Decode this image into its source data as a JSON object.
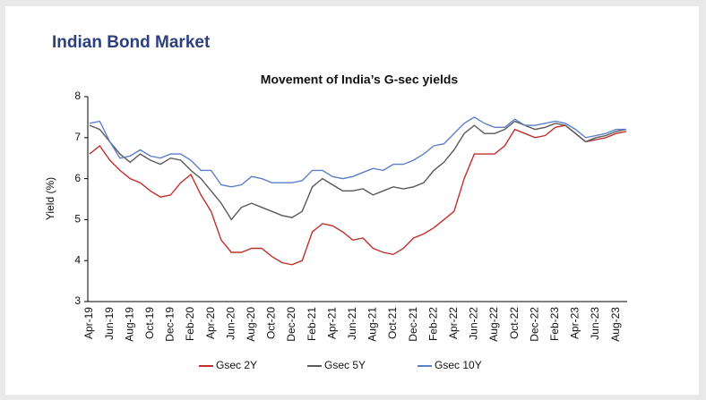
{
  "header": {
    "title": "Indian Bond Market"
  },
  "chart_data": {
    "type": "line",
    "title": "Movement of India’s G-sec yields",
    "y_label": "Yield (%)",
    "categories": [
      "Apr-19",
      null,
      "Jun-19",
      null,
      "Aug-19",
      null,
      "Oct-19",
      null,
      "Dec-19",
      null,
      "Feb-20",
      null,
      "Apr-20",
      null,
      "Jun-20",
      null,
      "Aug-20",
      null,
      "Oct-20",
      null,
      "Dec-20",
      null,
      "Feb-21",
      null,
      "Apr-21",
      null,
      "Jun-21",
      null,
      "Aug-21",
      null,
      "Oct-21",
      null,
      "Dec-21",
      null,
      "Feb-22",
      null,
      "Apr-22",
      null,
      "Jun-22",
      null,
      "Aug-22",
      null,
      "Oct-22",
      null,
      "Dec-22",
      null,
      "Feb-23",
      null,
      "Apr-23",
      null,
      "Jun-23",
      null,
      "Aug-23",
      null
    ],
    "series": [
      {
        "name": "Gsec 2Y",
        "color": "#c0302a",
        "values": [
          6.6,
          6.8,
          6.45,
          6.2,
          6.0,
          5.9,
          5.7,
          5.55,
          5.6,
          5.9,
          6.1,
          5.6,
          5.2,
          4.5,
          4.2,
          4.2,
          4.3,
          4.3,
          4.1,
          3.95,
          3.9,
          4.0,
          4.7,
          4.9,
          4.85,
          4.7,
          4.5,
          4.55,
          4.3,
          4.2,
          4.15,
          4.3,
          4.55,
          4.65,
          4.8,
          5.0,
          5.2,
          6.0,
          6.6,
          6.6,
          6.6,
          6.8,
          7.2,
          7.1,
          7.0,
          7.05,
          7.25,
          7.3,
          7.1,
          6.9,
          6.95,
          7.0,
          7.1,
          7.15
        ]
      },
      {
        "name": "Gsec 5Y",
        "color": "#595959",
        "values": [
          7.3,
          7.2,
          6.9,
          6.6,
          6.4,
          6.6,
          6.45,
          6.35,
          6.5,
          6.45,
          6.2,
          6.0,
          5.7,
          5.4,
          5.0,
          5.3,
          5.4,
          5.3,
          5.2,
          5.1,
          5.05,
          5.2,
          5.8,
          6.0,
          5.85,
          5.7,
          5.7,
          5.75,
          5.6,
          5.7,
          5.8,
          5.75,
          5.8,
          5.9,
          6.2,
          6.4,
          6.7,
          7.1,
          7.3,
          7.1,
          7.1,
          7.2,
          7.4,
          7.3,
          7.2,
          7.25,
          7.35,
          7.3,
          7.1,
          6.9,
          7.0,
          7.05,
          7.15,
          7.2
        ]
      },
      {
        "name": "Gsec 10Y",
        "color": "#5b7fc9",
        "values": [
          7.35,
          7.4,
          6.9,
          6.5,
          6.55,
          6.7,
          6.55,
          6.5,
          6.6,
          6.6,
          6.45,
          6.2,
          6.2,
          5.85,
          5.8,
          5.85,
          6.05,
          6.0,
          5.9,
          5.9,
          5.9,
          5.95,
          6.2,
          6.2,
          6.05,
          6.0,
          6.05,
          6.15,
          6.25,
          6.2,
          6.35,
          6.35,
          6.45,
          6.6,
          6.8,
          6.85,
          7.1,
          7.35,
          7.5,
          7.35,
          7.25,
          7.25,
          7.45,
          7.3,
          7.3,
          7.35,
          7.4,
          7.35,
          7.2,
          7.0,
          7.05,
          7.1,
          7.2,
          7.2
        ]
      }
    ],
    "ylim": [
      3,
      8
    ],
    "yticks": [
      3,
      4,
      5,
      6,
      7,
      8
    ],
    "grid": false,
    "legend": "bottom"
  }
}
